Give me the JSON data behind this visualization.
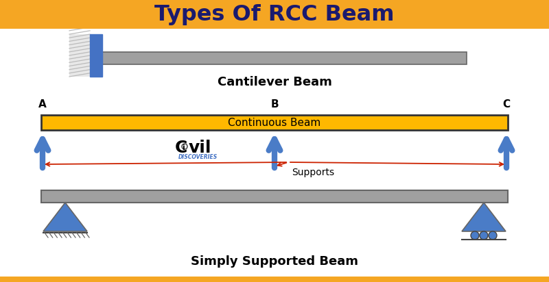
{
  "title": "Types Of RCC Beam",
  "title_bg": "#F5A623",
  "title_color": "#1a1a6e",
  "bg_color": "#ffffff",
  "beam_color": "#a0a0a0",
  "beam_border": "#666666",
  "yellow_beam_color": "#FFB800",
  "yellow_beam_border": "#333333",
  "arrow_color": "#4a7cc7",
  "red_arrow_color": "#CC2200",
  "triangle_color": "#4a7cc7",
  "wall_color": "#4472C4",
  "hatch_bg": "#e8e8e8",
  "cantilever_label": "Cantilever Beam",
  "continuous_label": "Continuous Beam",
  "simply_label": "Simply Supported Beam",
  "supports_label": "Supports",
  "label_A": "A",
  "label_B": "B",
  "label_C": "C"
}
